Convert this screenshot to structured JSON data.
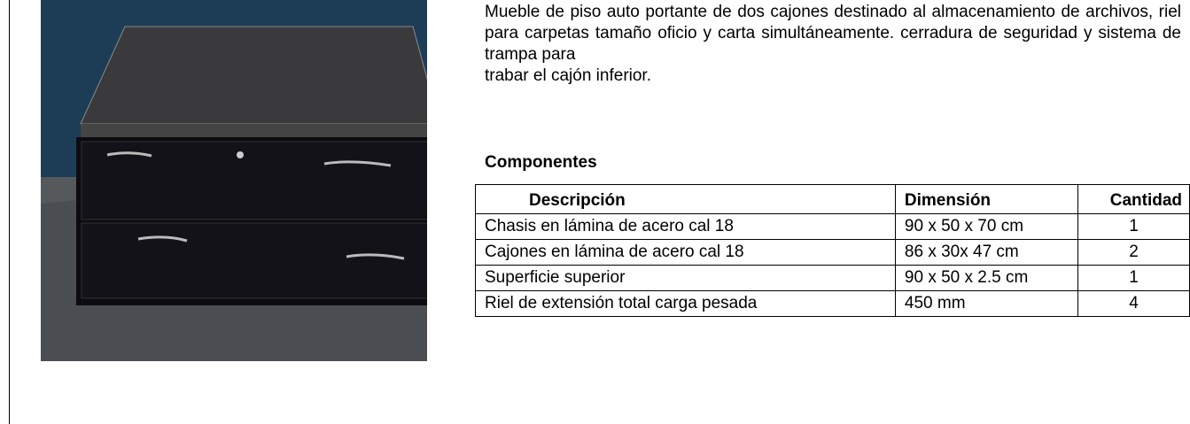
{
  "description": [
    "Mueble de piso auto portante de dos cajones destinado al almacenamiento de archivos, riel para carpetas tamaño oficio y carta simultáneamente. cerradura de seguridad y sistema de trampa para",
    "trabar el cajón inferior."
  ],
  "section_title": "Componentes",
  "table": {
    "headers": [
      "Descripción",
      "Dimensión",
      "Cantidad"
    ],
    "rows": [
      [
        "Chasis en lámina de acero cal 18",
        "90 x 50 x 70 cm",
        "1"
      ],
      [
        "Cajones en lámina de acero cal 18",
        "86 x 30x 47 cm",
        "2"
      ],
      [
        "Superficie superior",
        "90 x 50 x 2.5 cm",
        "1"
      ],
      [
        "Riel de extensión total carga pesada",
        "450 mm",
        "4"
      ]
    ]
  }
}
